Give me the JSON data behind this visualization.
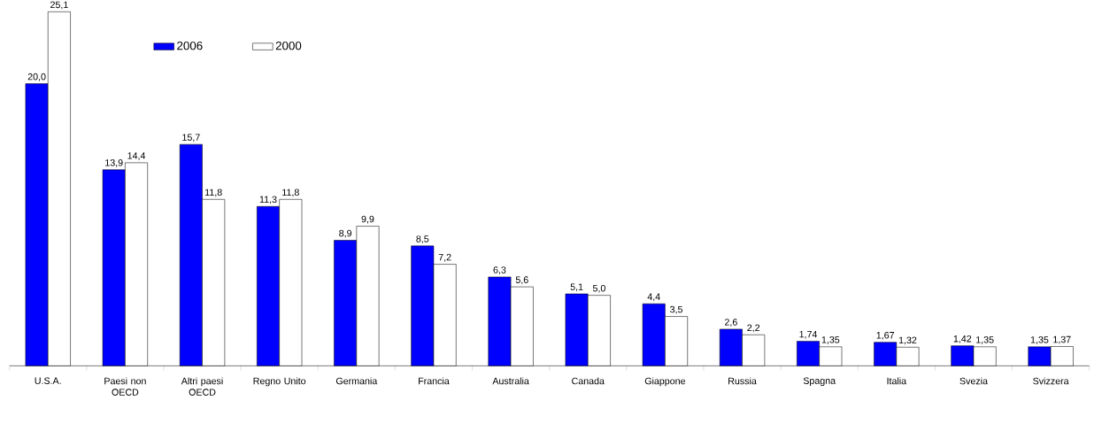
{
  "chart_data": {
    "type": "bar",
    "categories": [
      "U.S.A.",
      "Paesi non OECD",
      "Altri paesi OECD",
      "Regno Unito",
      "Germania",
      "Francia",
      "Australia",
      "Canada",
      "Giappone",
      "Russia",
      "Spagna",
      "Italia",
      "Svezia",
      "Svizzera"
    ],
    "series": [
      {
        "name": "2006",
        "color": "#0000ff",
        "values": [
          20.0,
          13.9,
          15.7,
          11.3,
          8.9,
          8.5,
          6.3,
          5.1,
          4.4,
          2.6,
          1.74,
          1.67,
          1.42,
          1.35
        ],
        "value_labels": [
          "20,0",
          "13,9",
          "15,7",
          "11,3",
          "8,9",
          "8,5",
          "6,3",
          "5,1",
          "4,4",
          "2,6",
          "1,74",
          "1,67",
          "1,42",
          "1,35"
        ]
      },
      {
        "name": "2000",
        "color": "#ffffff",
        "values": [
          25.1,
          14.4,
          11.8,
          11.8,
          9.9,
          7.2,
          5.6,
          5.0,
          3.5,
          2.2,
          1.35,
          1.32,
          1.35,
          1.37
        ],
        "value_labels": [
          "25,1",
          "14,4",
          "11,8",
          "11,8",
          "9,9",
          "7,2",
          "5,6",
          "5,0",
          "3,5",
          "2,2",
          "1,35",
          "1,32",
          "1,35",
          "1,37"
        ]
      }
    ],
    "legend": "top left"
  }
}
